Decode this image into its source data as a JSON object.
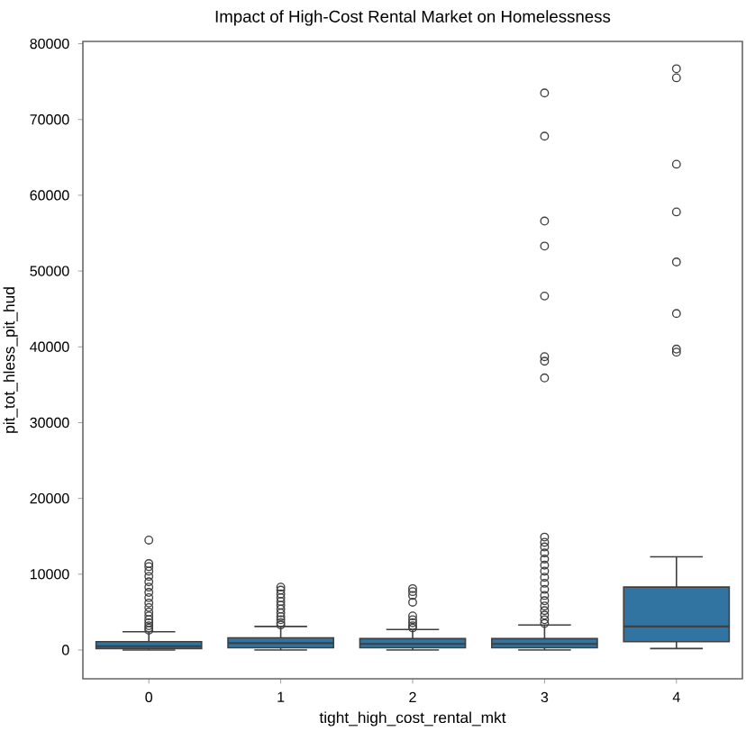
{
  "chart_data": {
    "type": "box",
    "title": "Impact of High-Cost Rental Market on Homelessness",
    "xlabel": "tight_high_cost_rental_mkt",
    "ylabel": "pit_tot_hless_pit_hud",
    "categories": [
      "0",
      "1",
      "2",
      "3",
      "4"
    ],
    "color": "#3274a1",
    "marker": "circle",
    "boxes": [
      {
        "low": 0,
        "q1": 200,
        "median": 500,
        "q3": 1100,
        "high": 2400,
        "outliers": [
          2600,
          2900,
          3200,
          3600,
          4000,
          4500,
          5000,
          5600,
          6200,
          6900,
          7600,
          8300,
          9000,
          9700,
          10400,
          11000,
          11400,
          14500
        ]
      },
      {
        "low": 0,
        "q1": 300,
        "median": 900,
        "q3": 1600,
        "high": 3100,
        "outliers": [
          3300,
          3600,
          4000,
          4400,
          4900,
          5400,
          5900,
          6400,
          6900,
          7400,
          7900,
          8300
        ]
      },
      {
        "low": 0,
        "q1": 300,
        "median": 800,
        "q3": 1500,
        "high": 2700,
        "outliers": [
          2900,
          3200,
          3600,
          4000,
          4500,
          6300,
          7200,
          7700,
          8100
        ]
      },
      {
        "low": 0,
        "q1": 300,
        "median": 800,
        "q3": 1500,
        "high": 3300,
        "outliers": [
          3500,
          4000,
          4600,
          5200,
          5800,
          6500,
          7200,
          8000,
          8800,
          9600,
          10400,
          11200,
          12000,
          12800,
          13600,
          14200,
          14900,
          35900,
          38100,
          38700,
          46700,
          53300,
          56600,
          67800,
          73500
        ]
      },
      {
        "low": 200,
        "q1": 1100,
        "median": 3100,
        "q3": 8300,
        "high": 12300,
        "outliers": [
          39300,
          39700,
          44400,
          51200,
          57800,
          64100,
          75500,
          76700
        ]
      }
    ],
    "ylim": [
      -3800,
      80300
    ],
    "yticks": [
      0,
      10000,
      20000,
      30000,
      40000,
      50000,
      60000,
      70000,
      80000
    ]
  }
}
